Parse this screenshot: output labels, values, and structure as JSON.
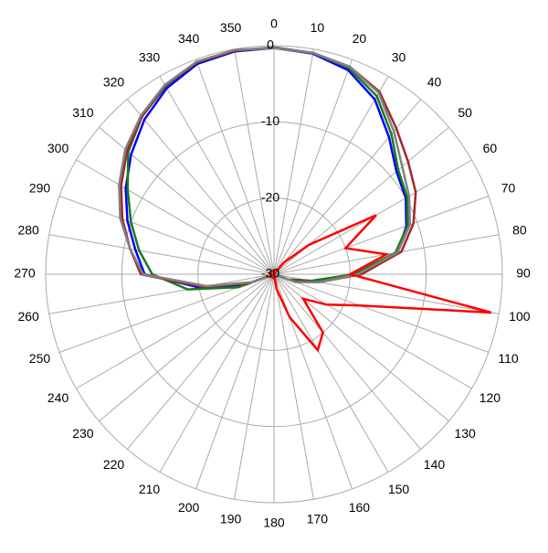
{
  "chart_data": {
    "type": "polar",
    "theta": [
      0,
      10,
      20,
      30,
      40,
      50,
      60,
      70,
      80,
      90,
      100,
      110,
      120,
      130,
      140,
      150,
      160,
      170,
      180,
      190,
      200,
      210,
      220,
      230,
      240,
      250,
      260,
      270,
      280,
      290,
      300,
      310,
      320,
      330,
      340,
      350
    ],
    "rlim": [
      -30,
      0
    ],
    "rticks": [
      -30,
      -20,
      -10,
      0
    ],
    "grid": true,
    "series": [
      {
        "color": "#0000ff",
        "values": [
          -0.3,
          -0.6,
          -1.5,
          -3.5,
          -6.5,
          -9,
          -10,
          -11.5,
          -13.5,
          -19,
          -25,
          -28,
          -30,
          -30,
          -30,
          -30,
          -30,
          -30,
          -30,
          -30,
          -30,
          -30,
          -30,
          -30,
          -30,
          -26,
          -20,
          -13,
          -11.5,
          -9.5,
          -7.5,
          -5.5,
          -3.5,
          -1.8,
          -0.6,
          -0.3
        ]
      },
      {
        "color": "#1a7a1a",
        "values": [
          -0.2,
          -0.5,
          -1.2,
          -3,
          -6,
          -8.7,
          -9.8,
          -11.3,
          -13.8,
          -19.5,
          -25,
          -28,
          -30,
          -30,
          -30,
          -30,
          -30,
          -30,
          -30,
          -30,
          -30,
          -30,
          -30,
          -30,
          -30,
          -25,
          -18.5,
          -14,
          -12,
          -10,
          -7.8,
          -5,
          -3,
          -1.5,
          -0.4,
          -0.2
        ]
      },
      {
        "color": "#a0282a",
        "values": [
          -0.3,
          -0.5,
          -1,
          -2.3,
          -5,
          -7,
          -8.5,
          -10.5,
          -13,
          -18.5,
          -24,
          -27.5,
          -30,
          -30,
          -30,
          -30,
          -30,
          -30,
          -30,
          -30,
          -30,
          -30,
          -30,
          -30,
          -30,
          -26.5,
          -20.5,
          -12.5,
          -10.8,
          -8.8,
          -6.8,
          -4.8,
          -3,
          -1.4,
          -0.4,
          -0.2
        ]
      },
      {
        "color": "#808080",
        "values": [
          -0.3,
          -0.5,
          -1,
          -2.5,
          -5.5,
          -8,
          -9.5,
          -11,
          -13.5,
          -19,
          -24,
          -27,
          -30,
          -30,
          -30,
          -30,
          -30,
          -30,
          -30,
          -30,
          -30,
          -30,
          -30,
          -30,
          -30,
          -27,
          -21,
          -12.8,
          -10.8,
          -8.5,
          -6.5,
          -4.5,
          -2.8,
          -1.3,
          -0.3,
          -0.1
        ]
      },
      {
        "color": "#ff0000",
        "values": [
          -30,
          -30,
          -30,
          -30,
          -28,
          -24,
          -14.5,
          -20,
          -15,
          -20,
          -1,
          -18,
          -22,
          -25,
          -20,
          -18.5,
          -24,
          -28,
          -30,
          -29.5,
          -29.5,
          -29.5,
          -29.5,
          -29.5,
          -29.5,
          -29.5,
          -29.5,
          -29.5,
          -29.5,
          -29.5,
          -29.5,
          -29.5,
          -29.5,
          -29.5,
          -29.5,
          -29.5
        ]
      }
    ]
  }
}
